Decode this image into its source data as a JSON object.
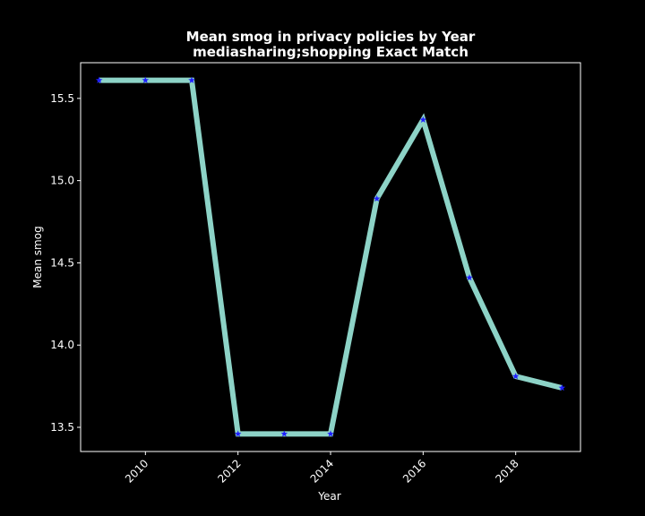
{
  "chart_data": {
    "type": "line",
    "title_line1": "Mean smog in privacy policies by Year",
    "title_line2": "mediasharing;shopping Exact Match",
    "xlabel": "Year",
    "ylabel": "Mean smog",
    "x": [
      2009,
      2010,
      2011,
      2012,
      2013,
      2014,
      2015,
      2016,
      2017,
      2018,
      2019
    ],
    "series": [
      {
        "values": [
          15.61,
          15.61,
          15.61,
          13.46,
          13.46,
          13.46,
          14.89,
          15.37,
          14.41,
          13.81,
          13.74
        ]
      }
    ],
    "xticks": [
      2010,
      2012,
      2014,
      2016,
      2018
    ],
    "yticks": [
      13.5,
      14.0,
      14.5,
      15.0,
      15.5
    ],
    "ytick_labels": [
      "13.5",
      "14.0",
      "14.5",
      "15.0",
      "15.5"
    ],
    "xlim": [
      2008.6,
      2019.4
    ],
    "ylim": [
      13.353,
      15.717
    ],
    "grid": false,
    "colors": {
      "background": "#000000",
      "line": "#8dd3c7",
      "marker": "#1f1fff",
      "axes": "#ffffff",
      "text": "#ffffff"
    },
    "marker": "star"
  }
}
